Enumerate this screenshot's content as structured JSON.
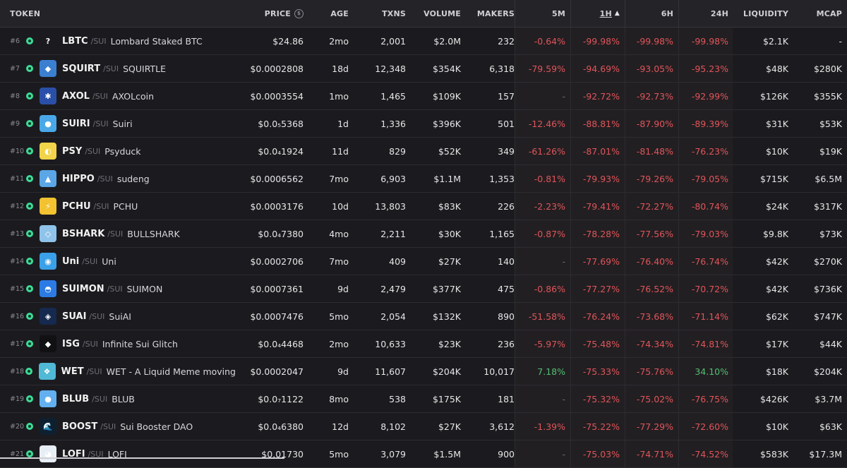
{
  "headers": {
    "token": "TOKEN",
    "price": "PRICE",
    "age": "AGE",
    "txns": "TXNS",
    "volume": "VOLUME",
    "makers": "MAKERS",
    "m5": "5M",
    "h1": "1H",
    "h6": "6H",
    "h24": "24H",
    "liquidity": "LIQUIDITY",
    "mcap": "MCAP"
  },
  "colors": {
    "negative": "#e0555a",
    "positive": "#4fc072",
    "neutral": "#6e6e75"
  },
  "rows": [
    {
      "rank": "#6",
      "sym": "LBTC",
      "chain": "/SUI",
      "name": "Lombard Staked BTC",
      "price": "$24.86",
      "age": "2mo",
      "txns": "2,001",
      "volume": "$2.0M",
      "makers": "232",
      "m5": "-0.64%",
      "h1": "-99.98%",
      "h6": "-99.98%",
      "h24": "-99.98%",
      "liq": "$2.1K",
      "mcap": "-",
      "logo_color": "#1b1b1f",
      "logo_glyph": "?"
    },
    {
      "rank": "#7",
      "sym": "SQUIRT",
      "chain": "/SUI",
      "name": "SQUIRTLE",
      "price": "$0.0002808",
      "age": "18d",
      "txns": "12,348",
      "volume": "$354K",
      "makers": "6,318",
      "m5": "-79.59%",
      "h1": "-94.69%",
      "h6": "-93.05%",
      "h24": "-95.23%",
      "liq": "$48K",
      "mcap": "$280K",
      "logo_color": "#3b7fd1",
      "logo_glyph": "◆"
    },
    {
      "rank": "#8",
      "sym": "AXOL",
      "chain": "/SUI",
      "name": "AXOLcoin",
      "price": "$0.0003554",
      "age": "1mo",
      "txns": "1,465",
      "volume": "$109K",
      "makers": "157",
      "m5": "-",
      "h1": "-92.72%",
      "h6": "-92.73%",
      "h24": "-92.99%",
      "liq": "$126K",
      "mcap": "$355K",
      "logo_color": "#2a4fa8",
      "logo_glyph": "✱"
    },
    {
      "rank": "#9",
      "sym": "SUIRI",
      "chain": "/SUI",
      "name": "Suiri",
      "price": "$0.0₅5368",
      "age": "1d",
      "txns": "1,336",
      "volume": "$396K",
      "makers": "501",
      "m5": "-12.46%",
      "h1": "-88.81%",
      "h6": "-87.90%",
      "h24": "-89.39%",
      "liq": "$31K",
      "mcap": "$53K",
      "logo_color": "#4aa8e8",
      "logo_glyph": "●"
    },
    {
      "rank": "#10",
      "sym": "PSY",
      "chain": "/SUI",
      "name": "Psyduck",
      "price": "$0.0₄1924",
      "age": "11d",
      "txns": "829",
      "volume": "$52K",
      "makers": "349",
      "m5": "-61.26%",
      "h1": "-87.01%",
      "h6": "-81.48%",
      "h24": "-76.23%",
      "liq": "$10K",
      "mcap": "$19K",
      "logo_color": "#f1d44a",
      "logo_glyph": "◐"
    },
    {
      "rank": "#11",
      "sym": "HIPPO",
      "chain": "/SUI",
      "name": "sudeng",
      "price": "$0.0006562",
      "age": "7mo",
      "txns": "6,903",
      "volume": "$1.1M",
      "makers": "1,353",
      "m5": "-0.81%",
      "h1": "-79.93%",
      "h6": "-79.26%",
      "h24": "-79.05%",
      "liq": "$715K",
      "mcap": "$6.5M",
      "logo_color": "#5aa6e6",
      "logo_glyph": "▲"
    },
    {
      "rank": "#12",
      "sym": "PCHU",
      "chain": "/SUI",
      "name": "PCHU",
      "price": "$0.0003176",
      "age": "10d",
      "txns": "13,803",
      "volume": "$83K",
      "makers": "226",
      "m5": "-2.23%",
      "h1": "-79.41%",
      "h6": "-72.27%",
      "h24": "-80.74%",
      "liq": "$24K",
      "mcap": "$317K",
      "logo_color": "#f2c230",
      "logo_glyph": "⚡"
    },
    {
      "rank": "#13",
      "sym": "BSHARK",
      "chain": "/SUI",
      "name": "BULLSHARK",
      "price": "$0.0₄7380",
      "age": "4mo",
      "txns": "2,211",
      "volume": "$30K",
      "makers": "1,165",
      "m5": "-0.87%",
      "h1": "-78.28%",
      "h6": "-77.56%",
      "h24": "-79.03%",
      "liq": "$9.8K",
      "mcap": "$73K",
      "logo_color": "#8fc3ea",
      "logo_glyph": "◇"
    },
    {
      "rank": "#14",
      "sym": "Uni",
      "chain": "/SUI",
      "name": "Uni",
      "price": "$0.0002706",
      "age": "7mo",
      "txns": "409",
      "volume": "$27K",
      "makers": "140",
      "m5": "-",
      "h1": "-77.69%",
      "h6": "-76.40%",
      "h24": "-76.74%",
      "liq": "$42K",
      "mcap": "$270K",
      "logo_color": "#3aa0e8",
      "logo_glyph": "◉"
    },
    {
      "rank": "#15",
      "sym": "SUIMON",
      "chain": "/SUI",
      "name": "SUIMON",
      "price": "$0.0007361",
      "age": "9d",
      "txns": "2,479",
      "volume": "$377K",
      "makers": "475",
      "m5": "-0.86%",
      "h1": "-77.27%",
      "h6": "-76.52%",
      "h24": "-70.72%",
      "liq": "$42K",
      "mcap": "$736K",
      "logo_color": "#2c7be5",
      "logo_glyph": "◓"
    },
    {
      "rank": "#16",
      "sym": "SUAI",
      "chain": "/SUI",
      "name": "SuiAI",
      "price": "$0.0007476",
      "age": "5mo",
      "txns": "2,054",
      "volume": "$132K",
      "makers": "890",
      "m5": "-51.58%",
      "h1": "-76.24%",
      "h6": "-73.68%",
      "h24": "-71.14%",
      "liq": "$62K",
      "mcap": "$747K",
      "logo_color": "#16294f",
      "logo_glyph": "◈"
    },
    {
      "rank": "#17",
      "sym": "ISG",
      "chain": "/SUI",
      "name": "Infinite Sui Glitch",
      "price": "$0.0₄4468",
      "age": "2mo",
      "txns": "10,633",
      "volume": "$23K",
      "makers": "236",
      "m5": "-5.97%",
      "h1": "-75.48%",
      "h6": "-74.34%",
      "h24": "-74.81%",
      "liq": "$17K",
      "mcap": "$44K",
      "logo_color": "#111114",
      "logo_glyph": "◆"
    },
    {
      "rank": "#18",
      "sym": "WET",
      "chain": "/SUI",
      "name": "WET - A Liquid Meme moving",
      "price": "$0.0002047",
      "age": "9d",
      "txns": "11,607",
      "volume": "$204K",
      "makers": "10,017",
      "m5": "7.18%",
      "h1": "-75.33%",
      "h6": "-75.76%",
      "h24": "34.10%",
      "liq": "$18K",
      "mcap": "$204K",
      "logo_color": "#4fb9d6",
      "logo_glyph": "❖"
    },
    {
      "rank": "#19",
      "sym": "BLUB",
      "chain": "/SUI",
      "name": "BLUB",
      "price": "$0.0₇1122",
      "age": "8mo",
      "txns": "538",
      "volume": "$175K",
      "makers": "181",
      "m5": "-",
      "h1": "-75.32%",
      "h6": "-75.02%",
      "h24": "-76.75%",
      "liq": "$426K",
      "mcap": "$3.7M",
      "logo_color": "#62b0f0",
      "logo_glyph": "●"
    },
    {
      "rank": "#20",
      "sym": "BOOST",
      "chain": "/SUI",
      "name": "Sui Booster DAO",
      "price": "$0.0₄6380",
      "age": "12d",
      "txns": "8,102",
      "volume": "$27K",
      "makers": "3,612",
      "m5": "-1.39%",
      "h1": "-75.22%",
      "h6": "-77.29%",
      "h24": "-72.60%",
      "liq": "$10K",
      "mcap": "$63K",
      "logo_color": "#0e2030",
      "logo_glyph": "🌊"
    },
    {
      "rank": "#21",
      "sym": "LOFI",
      "chain": "/SUI",
      "name": "LOFI",
      "price": "$0.01730",
      "age": "5mo",
      "txns": "3,079",
      "volume": "$1.5M",
      "makers": "900",
      "m5": "-",
      "h1": "-75.03%",
      "h6": "-74.71%",
      "h24": "-74.52%",
      "liq": "$583K",
      "mcap": "$17.3M",
      "logo_color": "#e8eef5",
      "logo_glyph": "◕"
    }
  ]
}
